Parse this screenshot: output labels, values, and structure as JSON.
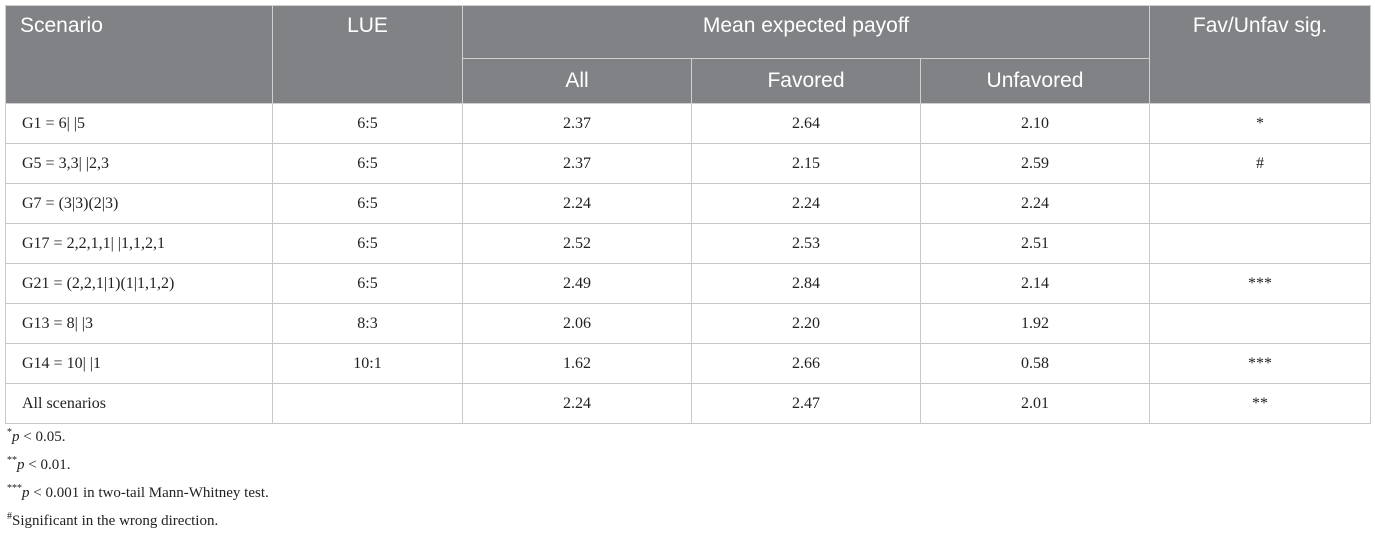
{
  "table": {
    "header": {
      "top": [
        "Scenario",
        "LUE",
        "Mean expected payoff",
        "Fav/Unfav sig."
      ],
      "sub": [
        "All",
        "Favored",
        "Unfavored"
      ]
    },
    "rows": [
      [
        "G1 = 6| |5",
        "6:5",
        "2.37",
        "2.64",
        "2.10",
        "*"
      ],
      [
        "G5 = 3,3| |2,3",
        "6:5",
        "2.37",
        "2.15",
        "2.59",
        "#"
      ],
      [
        "G7 = (3|3)(2|3)",
        "6:5",
        "2.24",
        "2.24",
        "2.24",
        null
      ],
      [
        "G17 = 2,2,1,1| |1,1,2,1",
        "6:5",
        "2.52",
        "2.53",
        "2.51",
        null
      ],
      [
        "G21 = (2,2,1|1)(1|1,1,2)",
        "6:5",
        "2.49",
        "2.84",
        "2.14",
        "***"
      ],
      [
        "G13 = 8| |3",
        "8:3",
        "2.06",
        "2.20",
        "1.92",
        null
      ],
      [
        "G14 = 10| |1",
        "10:1",
        "1.62",
        "2.66",
        "0.58",
        "***"
      ],
      [
        "All scenarios",
        null,
        "2.24",
        "2.47",
        "2.01",
        "**"
      ]
    ]
  },
  "footnotes": [
    {
      "mark": "*",
      "var": "p",
      "text": " < 0.05."
    },
    {
      "mark": "**",
      "var": "p",
      "text": " < 0.01."
    },
    {
      "mark": "***",
      "var": "p",
      "text": " < 0.001 in two-tail Mann-Whitney test."
    },
    {
      "mark": "#",
      "var": null,
      "text": "Significant in the wrong direction."
    }
  ]
}
